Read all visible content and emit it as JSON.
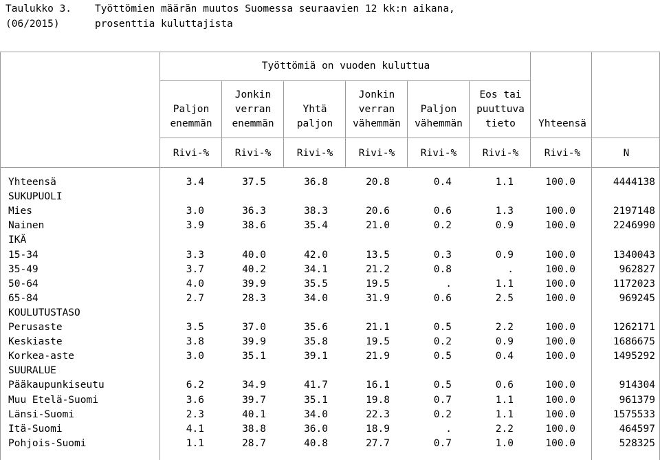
{
  "title": {
    "label_line1": "Taulukko 3.",
    "text_line1": "Työttömien määrän muutos Suomessa seuraavien 12 kk:n aikana,",
    "label_line2": "(06/2015)",
    "text_line2": "prosenttia kuluttajista"
  },
  "header": {
    "group_label": "Työttömiä on vuoden kuluttua",
    "columns": [
      [
        "",
        "Paljon",
        "enemmän"
      ],
      [
        "Jonkin",
        "verran",
        "enemmän"
      ],
      [
        "",
        "Yhtä",
        "paljon"
      ],
      [
        "Jonkin",
        "verran",
        "vähemmän"
      ],
      [
        "",
        "Paljon",
        "vähemmän"
      ],
      [
        "Eos tai",
        "puuttuva",
        "tieto"
      ],
      [
        "",
        "",
        "Yhteensä"
      ]
    ],
    "units": [
      "Rivi-%",
      "Rivi-%",
      "Rivi-%",
      "Rivi-%",
      "Rivi-%",
      "Rivi-%",
      "Rivi-%",
      "N"
    ]
  },
  "rows": [
    {
      "label": "Yhteensä",
      "values": [
        "3.4",
        "37.5",
        "36.8",
        "20.8",
        "0.4",
        "1.1",
        "100.0",
        "4444138"
      ]
    },
    {
      "label": "SUKUPUOLI",
      "values": []
    },
    {
      "label": "Mies",
      "values": [
        "3.0",
        "36.3",
        "38.3",
        "20.6",
        "0.6",
        "1.3",
        "100.0",
        "2197148"
      ]
    },
    {
      "label": "Nainen",
      "values": [
        "3.9",
        "38.6",
        "35.4",
        "21.0",
        "0.2",
        "0.9",
        "100.0",
        "2246990"
      ]
    },
    {
      "label": "IKÄ",
      "values": []
    },
    {
      "label": "15-34",
      "values": [
        "3.3",
        "40.0",
        "42.0",
        "13.5",
        "0.3",
        "0.9",
        "100.0",
        "1340043"
      ]
    },
    {
      "label": "35-49",
      "values": [
        "3.7",
        "40.2",
        "34.1",
        "21.2",
        "0.8",
        ".",
        "100.0",
        "962827"
      ]
    },
    {
      "label": "50-64",
      "values": [
        "4.0",
        "39.9",
        "35.5",
        "19.5",
        ".",
        "1.1",
        "100.0",
        "1172023"
      ]
    },
    {
      "label": "65-84",
      "values": [
        "2.7",
        "28.3",
        "34.0",
        "31.9",
        "0.6",
        "2.5",
        "100.0",
        "969245"
      ]
    },
    {
      "label": "KOULUTUSTASO",
      "values": []
    },
    {
      "label": "Perusaste",
      "values": [
        "3.5",
        "37.0",
        "35.6",
        "21.1",
        "0.5",
        "2.2",
        "100.0",
        "1262171"
      ]
    },
    {
      "label": "Keskiaste",
      "values": [
        "3.8",
        "39.9",
        "35.8",
        "19.5",
        "0.2",
        "0.9",
        "100.0",
        "1686675"
      ]
    },
    {
      "label": "Korkea-aste",
      "values": [
        "3.0",
        "35.1",
        "39.1",
        "21.9",
        "0.5",
        "0.4",
        "100.0",
        "1495292"
      ]
    },
    {
      "label": "SUURALUE",
      "values": []
    },
    {
      "label": "Pääkaupunkiseutu",
      "values": [
        "6.2",
        "34.9",
        "41.7",
        "16.1",
        "0.5",
        "0.6",
        "100.0",
        "914304"
      ]
    },
    {
      "label": "Muu Etelä-Suomi",
      "values": [
        "3.6",
        "39.7",
        "35.1",
        "19.8",
        "0.7",
        "1.1",
        "100.0",
        "961379"
      ]
    },
    {
      "label": "Länsi-Suomi",
      "values": [
        "2.3",
        "40.1",
        "34.0",
        "22.3",
        "0.2",
        "1.1",
        "100.0",
        "1575533"
      ]
    },
    {
      "label": "Itä-Suomi",
      "values": [
        "4.1",
        "38.8",
        "36.0",
        "18.9",
        ".",
        "2.2",
        "100.0",
        "464597"
      ]
    },
    {
      "label": "Pohjois-Suomi",
      "values": [
        "1.1",
        "28.7",
        "40.8",
        "27.7",
        "0.7",
        "1.0",
        "100.0",
        "528325"
      ]
    }
  ]
}
